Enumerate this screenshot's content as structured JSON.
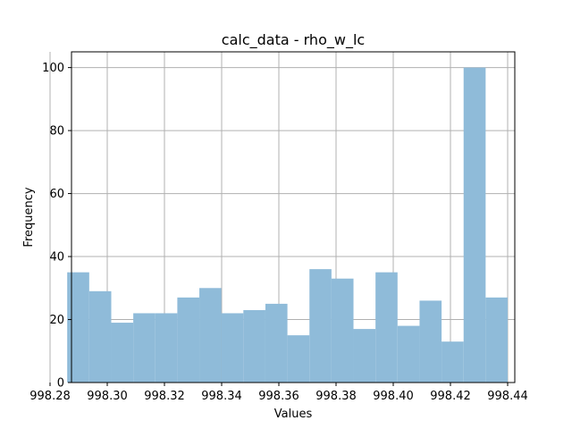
{
  "chart_data": {
    "type": "bar",
    "title": "calc_data - rho_w_lc",
    "xlabel": "Values",
    "ylabel": "Frequency",
    "xlim": [
      998.2875,
      998.4425
    ],
    "ylim": [
      0,
      105
    ],
    "grid": true,
    "bar_color": "#8fbbd9",
    "bin_edges": [
      998.286,
      998.2937,
      998.3014,
      998.3091,
      998.3168,
      998.3245,
      998.3322,
      998.3399,
      998.3476,
      998.3553,
      998.363,
      998.3707,
      998.3784,
      998.3861,
      998.3938,
      998.4015,
      998.4092,
      998.4169,
      998.4246,
      998.4323,
      998.44
    ],
    "values": [
      35,
      29,
      19,
      22,
      22,
      27,
      30,
      22,
      23,
      25,
      15,
      36,
      33,
      17,
      35,
      18,
      26,
      13,
      100,
      27
    ],
    "xticks": [
      998.28,
      998.3,
      998.32,
      998.34,
      998.36,
      998.38,
      998.4,
      998.42,
      998.44
    ],
    "xtick_labels": [
      "998.28",
      "998.30",
      "998.32",
      "998.34",
      "998.36",
      "998.38",
      "998.40",
      "998.42",
      "998.44"
    ],
    "yticks": [
      0,
      20,
      40,
      60,
      80,
      100
    ],
    "ytick_labels": [
      "0",
      "20",
      "40",
      "60",
      "80",
      "100"
    ]
  }
}
